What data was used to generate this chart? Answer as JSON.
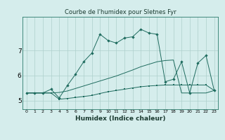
{
  "title": "Courbe de l'humidex pour Sletnes Fyr",
  "xlabel": "Humidex (Indice chaleur)",
  "background_color": "#d5edec",
  "grid_color": "#aecfcc",
  "line_color": "#1e6b5e",
  "x_ticks": [
    0,
    1,
    2,
    3,
    4,
    5,
    6,
    7,
    8,
    9,
    10,
    11,
    12,
    13,
    14,
    15,
    16,
    17,
    18,
    19,
    20,
    21,
    22,
    23
  ],
  "y_ticks": [
    5,
    6,
    7
  ],
  "ylim": [
    4.65,
    8.35
  ],
  "xlim": [
    -0.5,
    23.5
  ],
  "series_jagged_x": [
    0,
    1,
    2,
    3,
    4,
    5,
    6,
    7,
    8,
    9,
    10,
    11,
    12,
    13,
    14,
    15,
    16,
    17,
    18,
    19,
    20,
    21,
    22,
    23
  ],
  "series_jagged_y": [
    5.3,
    5.3,
    5.3,
    5.45,
    5.1,
    5.6,
    6.05,
    6.55,
    6.9,
    7.65,
    7.4,
    7.3,
    7.5,
    7.55,
    7.85,
    7.7,
    7.65,
    5.75,
    5.85,
    6.55,
    5.3,
    6.5,
    6.8,
    5.4
  ],
  "series_smooth_x": [
    0,
    1,
    2,
    3,
    4,
    5,
    6,
    7,
    8,
    9,
    10,
    11,
    12,
    13,
    14,
    15,
    16,
    17,
    18,
    19,
    20,
    21,
    22,
    23
  ],
  "series_smooth_y": [
    5.3,
    5.3,
    5.3,
    5.3,
    5.32,
    5.38,
    5.48,
    5.58,
    5.68,
    5.78,
    5.88,
    5.98,
    6.1,
    6.22,
    6.35,
    6.45,
    6.55,
    6.6,
    6.62,
    5.3,
    5.3,
    5.3,
    5.3,
    5.4
  ],
  "series_flat_x": [
    0,
    1,
    2,
    3,
    4,
    5,
    6,
    7,
    8,
    9,
    10,
    11,
    12,
    13,
    14,
    15,
    16,
    17,
    18,
    19,
    20,
    21,
    22,
    23
  ],
  "series_flat_y": [
    5.3,
    5.3,
    5.3,
    5.3,
    5.05,
    5.08,
    5.12,
    5.16,
    5.2,
    5.28,
    5.35,
    5.4,
    5.45,
    5.5,
    5.55,
    5.58,
    5.6,
    5.62,
    5.62,
    5.62,
    5.62,
    5.62,
    5.62,
    5.4
  ]
}
